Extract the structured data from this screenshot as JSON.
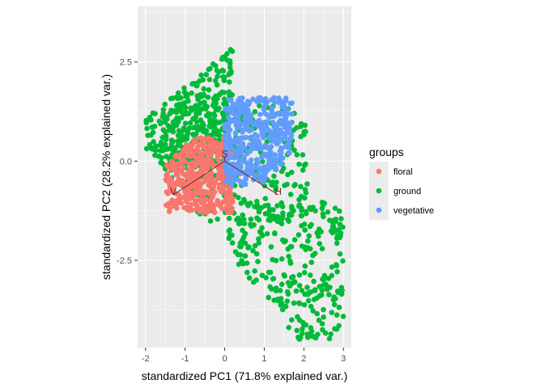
{
  "chart_data": {
    "type": "scatter",
    "title": "",
    "xlabel": "standardized PC1 (71.8% explained var.)",
    "ylabel": "standardized PC2 (28.2% explained var.)",
    "xlim": [
      -2.2,
      3.2
    ],
    "ylim": [
      -4.7,
      3.9
    ],
    "x_ticks": [
      -2,
      -1,
      0,
      1,
      2,
      3
    ],
    "x_tick_labels": [
      "-2",
      "-1",
      "0",
      "1",
      "2",
      "3"
    ],
    "y_ticks": [
      -2.5,
      0.0,
      2.5
    ],
    "y_tick_labels": [
      "-2.5",
      "0.0",
      "2.5"
    ],
    "grid": true,
    "background": "#EBEBEB",
    "legend": {
      "title": "groups",
      "position": "right",
      "entries": [
        {
          "label": "floral",
          "color": "#F8766D"
        },
        {
          "label": "ground",
          "color": "#00BA38"
        },
        {
          "label": "vegetative",
          "color": "#619CFF"
        }
      ]
    },
    "series": [
      {
        "name": "ground",
        "color": "#00BA38",
        "regions": [
          {
            "x": [
              -2.0,
              0.2
            ],
            "y": [
              -0.2,
              3.6
            ],
            "density": 320
          },
          {
            "x": [
              0.0,
              3.0
            ],
            "y": [
              -4.5,
              -1.0
            ],
            "density": 280
          },
          {
            "x": [
              -1.6,
              2.1
            ],
            "y": [
              -1.6,
              1.4
            ],
            "density": 300
          }
        ]
      },
      {
        "name": "floral",
        "color": "#F8766D",
        "regions": [
          {
            "x": [
              -1.5,
              0.2
            ],
            "y": [
              -1.3,
              0.6
            ],
            "density": 380
          }
        ]
      },
      {
        "name": "vegetative",
        "color": "#619CFF",
        "regions": [
          {
            "x": [
              0.0,
              1.7
            ],
            "y": [
              -0.6,
              1.6
            ],
            "density": 420
          }
        ]
      }
    ],
    "loadings": [
      {
        "label": "V",
        "x": -1.3,
        "y": -0.85
      },
      {
        "label": "S",
        "x": 0.0,
        "y": 0.1
      },
      {
        "label": "H",
        "x": 1.35,
        "y": -0.85
      }
    ]
  }
}
